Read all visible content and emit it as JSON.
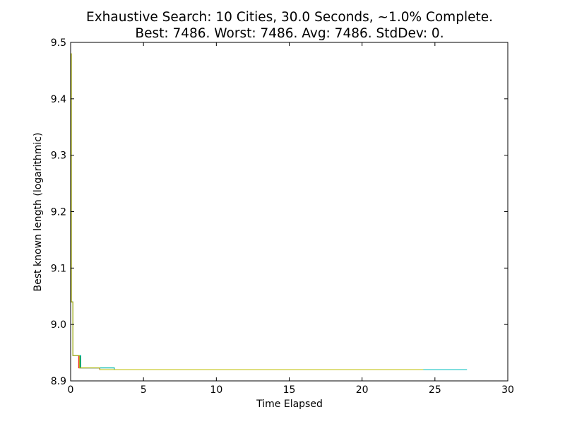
{
  "chart_data": {
    "type": "line",
    "title": "Exhaustive Search: 10 Cities, 30.0 Seconds, ~1.0% Complete.",
    "subtitle": "Best: 7486. Worst: 7486. Avg: 7486. StdDev: 0.",
    "xlabel": "Time Elapsed",
    "ylabel": "Best known length (logarithmic)",
    "xlim": [
      0,
      30
    ],
    "ylim": [
      8.9,
      9.5
    ],
    "x_ticks": [
      "0",
      "5",
      "10",
      "15",
      "20",
      "25",
      "30"
    ],
    "y_ticks": [
      "8.9",
      "9.0",
      "9.1",
      "9.2",
      "9.3",
      "9.4",
      "9.5"
    ],
    "grid": false,
    "legend": "none",
    "series": [
      {
        "color": "#0000ff",
        "x": [
          0.0,
          0.05,
          0.05,
          0.15,
          0.15,
          0.6,
          0.6,
          2.0,
          2.0,
          24.3
        ],
        "y": [
          9.48,
          9.48,
          9.04,
          9.04,
          8.945,
          8.945,
          8.923,
          8.923,
          8.92,
          8.92
        ]
      },
      {
        "color": "#008000",
        "x": [
          0.0,
          0.05,
          0.05,
          0.15,
          0.15,
          0.65,
          0.65,
          3.0,
          3.0,
          24.5
        ],
        "y": [
          9.48,
          9.48,
          9.04,
          9.04,
          8.945,
          8.945,
          8.923,
          8.923,
          8.92,
          8.92
        ]
      },
      {
        "color": "#ff0000",
        "x": [
          0.0,
          0.05,
          0.05,
          0.15,
          0.15,
          0.55,
          0.55,
          2.0,
          2.0,
          24.0
        ],
        "y": [
          9.48,
          9.48,
          9.04,
          9.04,
          8.945,
          8.945,
          8.923,
          8.923,
          8.92,
          8.92
        ]
      },
      {
        "color": "#00bfbf",
        "x": [
          0.0,
          0.05,
          0.05,
          0.15,
          0.15,
          0.7,
          0.7,
          3.0,
          3.0,
          27.2
        ],
        "y": [
          9.48,
          9.48,
          9.04,
          9.04,
          8.945,
          8.945,
          8.923,
          8.923,
          8.92,
          8.92
        ]
      },
      {
        "color": "#bfbf00",
        "x": [
          0.0,
          0.05,
          0.05,
          0.15,
          0.15,
          0.6,
          0.6,
          2.0,
          2.0,
          24.2
        ],
        "y": [
          9.48,
          9.48,
          9.04,
          9.04,
          8.945,
          8.945,
          8.923,
          8.923,
          8.92,
          8.92
        ]
      }
    ]
  }
}
